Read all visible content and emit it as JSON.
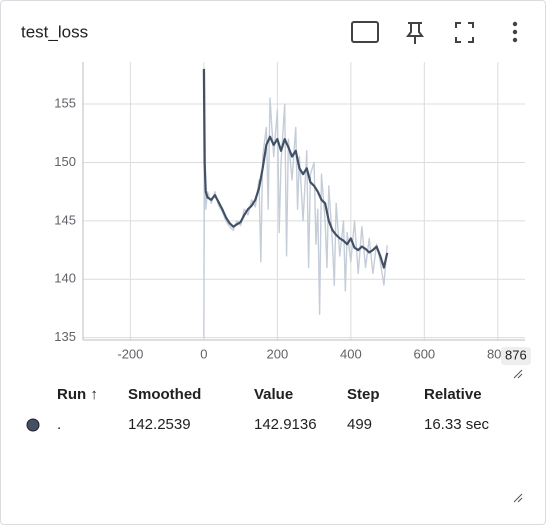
{
  "chart_data": {
    "type": "line",
    "title": "test_loss",
    "xlim": [
      -329,
      874
    ],
    "xticks": [
      -200,
      0,
      200,
      400,
      600,
      800
    ],
    "ylim": [
      134.8,
      158.6
    ],
    "yticks": [
      135,
      140,
      145,
      150,
      155
    ],
    "grid": true,
    "cursor_x": 876,
    "series": [
      {
        "color": "#c5cdd9",
        "x": [
          0,
          2,
          5,
          10,
          20,
          30,
          40,
          50,
          60,
          70,
          80,
          90,
          100,
          110,
          120,
          130,
          140,
          150,
          155,
          160,
          170,
          175,
          180,
          190,
          200,
          205,
          210,
          220,
          225,
          230,
          240,
          250,
          255,
          260,
          270,
          280,
          285,
          290,
          300,
          305,
          310,
          315,
          320,
          330,
          335,
          340,
          350,
          355,
          360,
          370,
          380,
          385,
          390,
          400,
          410,
          420,
          430,
          440,
          450,
          460,
          470,
          480,
          490,
          499
        ],
        "values": [
          135,
          158,
          146,
          147.5,
          146.5,
          147.5,
          146.3,
          145.8,
          145,
          144.5,
          144.2,
          145,
          144.6,
          146,
          145.5,
          146.8,
          146.2,
          148.5,
          141.5,
          150.5,
          153,
          146,
          155.5,
          150.5,
          154.5,
          144,
          150,
          155,
          142,
          152,
          148.5,
          153,
          146,
          150.5,
          145,
          151,
          141,
          149,
          150,
          143,
          146,
          137,
          149,
          145,
          141,
          148,
          143,
          139.5,
          146.5,
          142,
          145,
          139,
          144,
          141.5,
          145,
          140.5,
          144.5,
          141,
          143.5,
          140.5,
          143,
          141.5,
          139.5,
          142.9136
        ]
      },
      {
        "color": "#425066",
        "x": [
          0,
          2,
          5,
          10,
          20,
          30,
          40,
          50,
          60,
          70,
          80,
          90,
          100,
          110,
          120,
          130,
          140,
          150,
          160,
          170,
          180,
          190,
          200,
          210,
          220,
          230,
          240,
          250,
          260,
          270,
          280,
          290,
          300,
          310,
          320,
          330,
          340,
          350,
          360,
          370,
          380,
          390,
          400,
          410,
          420,
          430,
          440,
          450,
          460,
          470,
          480,
          490,
          499
        ],
        "values": [
          158,
          150,
          147.5,
          147,
          146.8,
          147.2,
          146.6,
          146,
          145.3,
          144.8,
          144.5,
          144.7,
          144.9,
          145.5,
          146,
          146.3,
          146.8,
          147.8,
          149.5,
          151.5,
          152.2,
          151.5,
          152,
          151,
          152,
          151.3,
          150.5,
          151,
          149.5,
          149,
          149.5,
          148.3,
          148,
          147.5,
          146.8,
          146.5,
          145,
          144.2,
          143.8,
          143.5,
          143.3,
          143,
          143.5,
          142.7,
          142.5,
          142.8,
          142.6,
          142.3,
          142.5,
          142.8,
          142,
          141,
          142.2539
        ]
      }
    ]
  },
  "table": {
    "columns": [
      "Run ↑",
      "Smoothed",
      "Value",
      "Step",
      "Relative"
    ],
    "rows": [
      {
        "color": "#425066",
        "cells": [
          ".",
          142.2539,
          142.9136,
          499,
          "16.33 sec"
        ]
      }
    ]
  }
}
